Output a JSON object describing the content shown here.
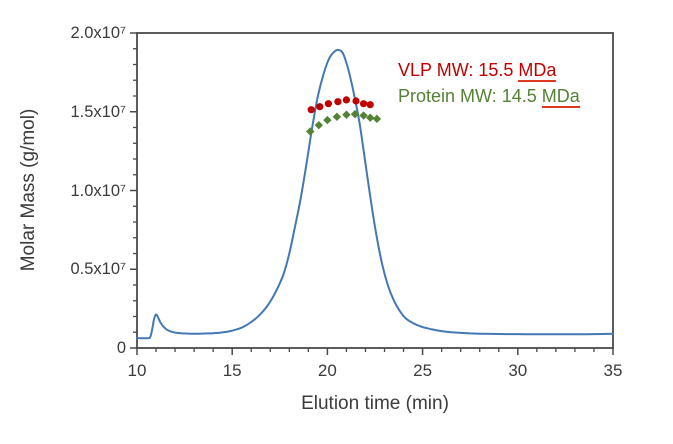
{
  "figure": {
    "background": "#ffffff",
    "text_color": "#3b3b3b",
    "axis_color": "#4a4a4a"
  },
  "chart_data": {
    "type": "line",
    "title": "",
    "xlabel": "Elution time (min)",
    "ylabel": "Molar Mass (g/mol)",
    "xlim": [
      10,
      35
    ],
    "ylim_e7": [
      0,
      2.0
    ],
    "y_unit": "1e7 g/mol",
    "grid": false,
    "legend_position": "none",
    "x_minor_step": 1,
    "y_minor_step": 0.1,
    "x_ticks": [
      {
        "v": 10,
        "label": "10"
      },
      {
        "v": 15,
        "label": "15"
      },
      {
        "v": 20,
        "label": "20"
      },
      {
        "v": 25,
        "label": "25"
      },
      {
        "v": 30,
        "label": "30"
      },
      {
        "v": 35,
        "label": "35"
      }
    ],
    "y_ticks": [
      {
        "v": 0.0,
        "label": "0"
      },
      {
        "v": 0.5,
        "label": "0.5x10⁷"
      },
      {
        "v": 1.0,
        "label": "1.0x10⁷"
      },
      {
        "v": 1.5,
        "label": "1.5x10⁷"
      },
      {
        "v": 2.0,
        "label": "2.0x10⁷"
      }
    ],
    "series": [
      {
        "name": "elution-profile",
        "type": "line",
        "color": "#4478b4",
        "width": 2,
        "points": [
          [
            10.0,
            0.063
          ],
          [
            10.2,
            0.062
          ],
          [
            10.4,
            0.062
          ],
          [
            10.6,
            0.062
          ],
          [
            10.7,
            0.07
          ],
          [
            10.8,
            0.12
          ],
          [
            10.9,
            0.185
          ],
          [
            11.0,
            0.213
          ],
          [
            11.1,
            0.196
          ],
          [
            11.25,
            0.158
          ],
          [
            11.45,
            0.128
          ],
          [
            11.7,
            0.108
          ],
          [
            12.0,
            0.098
          ],
          [
            12.4,
            0.093
          ],
          [
            12.8,
            0.091
          ],
          [
            13.2,
            0.091
          ],
          [
            13.6,
            0.092
          ],
          [
            14.0,
            0.094
          ],
          [
            14.4,
            0.098
          ],
          [
            14.8,
            0.105
          ],
          [
            15.2,
            0.117
          ],
          [
            15.6,
            0.135
          ],
          [
            16.0,
            0.165
          ],
          [
            16.4,
            0.205
          ],
          [
            16.8,
            0.26
          ],
          [
            17.1,
            0.315
          ],
          [
            17.4,
            0.385
          ],
          [
            17.7,
            0.47
          ],
          [
            18.0,
            0.6
          ],
          [
            18.3,
            0.77
          ],
          [
            18.6,
            0.95
          ],
          [
            18.9,
            1.17
          ],
          [
            19.2,
            1.4
          ],
          [
            19.5,
            1.6
          ],
          [
            19.8,
            1.74
          ],
          [
            20.1,
            1.84
          ],
          [
            20.4,
            1.885
          ],
          [
            20.6,
            1.892
          ],
          [
            20.8,
            1.875
          ],
          [
            21.0,
            1.81
          ],
          [
            21.2,
            1.72
          ],
          [
            21.45,
            1.58
          ],
          [
            21.7,
            1.42
          ],
          [
            22.0,
            1.17
          ],
          [
            22.3,
            0.92
          ],
          [
            22.6,
            0.7
          ],
          [
            22.9,
            0.52
          ],
          [
            23.2,
            0.39
          ],
          [
            23.5,
            0.3
          ],
          [
            23.8,
            0.235
          ],
          [
            24.1,
            0.19
          ],
          [
            24.5,
            0.158
          ],
          [
            25.0,
            0.133
          ],
          [
            25.5,
            0.118
          ],
          [
            26.0,
            0.107
          ],
          [
            26.5,
            0.1
          ],
          [
            27.0,
            0.096
          ],
          [
            27.5,
            0.093
          ],
          [
            28.0,
            0.091
          ],
          [
            29.0,
            0.089
          ],
          [
            30.0,
            0.088
          ],
          [
            31.0,
            0.087
          ],
          [
            32.0,
            0.087
          ],
          [
            33.0,
            0.087
          ],
          [
            34.0,
            0.088
          ],
          [
            35.0,
            0.09
          ]
        ]
      },
      {
        "name": "vlp-molar-mass",
        "type": "scatter",
        "marker": "circle",
        "color": "#c00000",
        "points": [
          [
            19.15,
            1.513
          ],
          [
            19.6,
            1.532
          ],
          [
            20.05,
            1.551
          ],
          [
            20.55,
            1.564
          ],
          [
            21.0,
            1.575
          ],
          [
            21.5,
            1.568
          ],
          [
            21.9,
            1.551
          ],
          [
            22.25,
            1.545
          ]
        ]
      },
      {
        "name": "protein-molar-mass",
        "type": "scatter",
        "marker": "diamond",
        "color": "#548235",
        "points": [
          [
            19.1,
            1.375
          ],
          [
            19.55,
            1.415
          ],
          [
            20.0,
            1.447
          ],
          [
            20.5,
            1.468
          ],
          [
            21.0,
            1.481
          ],
          [
            21.45,
            1.485
          ],
          [
            21.9,
            1.476
          ],
          [
            22.25,
            1.462
          ],
          [
            22.6,
            1.455
          ]
        ]
      }
    ],
    "annotations": [
      {
        "prefix": "VLP MW: 15.5 ",
        "unit": "MDa",
        "color": "#c00000",
        "underline_color": "#df3a20"
      },
      {
        "prefix": "Protein MW: 14.5 ",
        "unit": "MDa",
        "color": "#548235",
        "underline_color": "#df3a20"
      }
    ]
  }
}
